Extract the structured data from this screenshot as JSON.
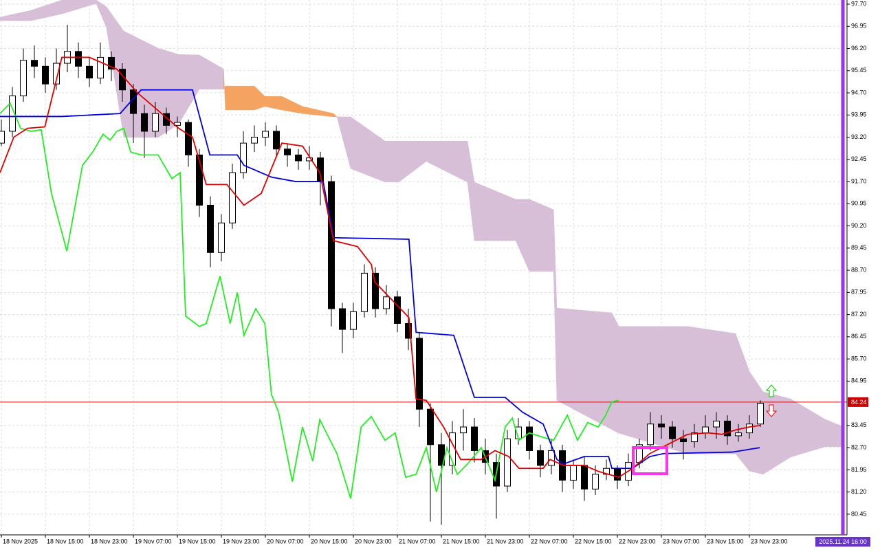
{
  "chart_data": {
    "type": "candlestick",
    "xlim": [
      -0.25,
      153.75
    ],
    "ylim": [
      79.75,
      97.84
    ],
    "grid": true,
    "yticks": [
      {
        "value": 97.7,
        "label": "97.70"
      },
      96.95,
      {
        "value": 96.2,
        "label": "96.20"
      },
      95.45,
      {
        "value": 94.7,
        "label": "94.70"
      },
      93.95,
      {
        "value": 93.2,
        "label": "93.20"
      },
      92.45,
      {
        "value": 91.7,
        "label": "91.70"
      },
      90.95,
      {
        "value": 90.2,
        "label": "90.20"
      },
      89.45,
      {
        "value": 88.7,
        "label": "88.70"
      },
      87.95,
      {
        "value": 87.2,
        "label": "87.20"
      },
      86.45,
      {
        "value": 85.7,
        "label": "85.70"
      },
      84.95,
      83.45,
      {
        "value": 82.7,
        "label": "82.70"
      },
      81.95,
      {
        "value": 81.2,
        "label": "81.20"
      },
      80.45
    ],
    "xticks": [
      {
        "value": 0,
        "label": "18 Nov 2025"
      },
      {
        "value": 8,
        "label": "18 Nov 15:00"
      },
      {
        "value": 16,
        "label": "18 Nov 23:00"
      },
      {
        "value": 24,
        "label": "19 Nov 07:00"
      },
      {
        "value": 32,
        "label": "19 Nov 15:00"
      },
      {
        "value": 40,
        "label": "19 Nov 23:00"
      },
      {
        "value": 48,
        "label": "20 Nov 07:00"
      },
      {
        "value": 56,
        "label": "20 Nov 15:00"
      },
      {
        "value": 64,
        "label": "20 Nov 23:00"
      },
      {
        "value": 72,
        "label": "21 Nov 07:00"
      },
      {
        "value": 80,
        "label": "21 Nov 15:00"
      },
      {
        "value": 88,
        "label": "21 Nov 23:00"
      },
      {
        "value": 96,
        "label": "22 Nov 07:00"
      },
      {
        "value": 104,
        "label": "22 Nov 15:00"
      },
      {
        "value": 112,
        "label": "22 Nov 23:00"
      },
      {
        "value": 120,
        "label": "23 Nov 07:00"
      },
      {
        "value": 128,
        "label": "23 Nov 15:00"
      },
      {
        "value": 136,
        "label": "23 Nov 23:00"
      }
    ],
    "candles": {
      "x": [
        0,
        2,
        4,
        6,
        8,
        10,
        12,
        14,
        16,
        18,
        20,
        22,
        24,
        26,
        28,
        30,
        32,
        34,
        36,
        38,
        40,
        42,
        44,
        46,
        48,
        50,
        52,
        54,
        56,
        58,
        60,
        62,
        64,
        66,
        68,
        70,
        72,
        74,
        76,
        78,
        80,
        82,
        84,
        86,
        88,
        90,
        92,
        94,
        96,
        98,
        100,
        102,
        104,
        106,
        108,
        110,
        112,
        114,
        116,
        118,
        120,
        122,
        124,
        126,
        128,
        130,
        132,
        134,
        136,
        138
      ],
      "open": [
        93.0,
        93.4,
        94.6,
        95.8,
        95.6,
        95.0,
        95.7,
        96.1,
        95.6,
        95.2,
        95.9,
        95.5,
        94.8,
        94.0,
        93.4,
        94.0,
        93.6,
        93.7,
        92.6,
        90.9,
        89.3,
        90.3,
        92.0,
        93.0,
        93.2,
        93.4,
        92.8,
        92.6,
        92.4,
        92.5,
        91.7,
        87.4,
        86.7,
        87.3,
        88.6,
        87.4,
        87.8,
        86.9,
        86.4,
        84.0,
        82.8,
        82.1,
        83.2,
        83.4,
        82.6,
        82.2,
        81.4,
        83.0,
        83.4,
        82.6,
        82.1,
        82.6,
        81.6,
        82.1,
        81.3,
        81.8,
        82.0,
        81.6,
        82.2,
        82.8,
        83.5,
        83.4,
        83.0,
        82.9,
        83.2,
        83.4,
        83.6,
        83.1,
        83.2,
        83.5
      ],
      "high": [
        93.8,
        94.9,
        96.2,
        96.3,
        95.9,
        96.2,
        97.0,
        96.4,
        95.9,
        96.4,
        96.1,
        95.7,
        95.0,
        94.3,
        94.4,
        94.2,
        93.9,
        93.8,
        92.8,
        91.2,
        90.6,
        92.3,
        93.4,
        93.6,
        93.7,
        93.6,
        93.0,
        92.8,
        92.9,
        92.7,
        91.9,
        87.6,
        87.6,
        88.9,
        88.8,
        88.2,
        88.0,
        87.4,
        86.6,
        84.2,
        83.2,
        83.6,
        84.0,
        83.7,
        83.0,
        82.5,
        83.3,
        83.7,
        83.6,
        82.8,
        83.0,
        82.8,
        82.3,
        82.4,
        82.1,
        82.3,
        82.1,
        82.5,
        83.0,
        83.9,
        83.8,
        83.6,
        83.3,
        83.5,
        83.8,
        83.9,
        83.8,
        83.5,
        83.8,
        84.3
      ],
      "low": [
        92.9,
        93.2,
        94.4,
        95.2,
        94.7,
        94.8,
        95.4,
        95.2,
        94.9,
        95.0,
        95.1,
        94.4,
        93.0,
        92.5,
        93.2,
        93.3,
        93.2,
        92.2,
        90.5,
        88.8,
        89.0,
        90.1,
        91.8,
        92.7,
        92.9,
        92.5,
        92.2,
        92.1,
        92.1,
        90.9,
        86.8,
        85.9,
        86.4,
        87.1,
        87.1,
        87.2,
        86.6,
        86.0,
        83.4,
        80.2,
        80.1,
        81.8,
        82.6,
        82.2,
        81.8,
        80.3,
        81.2,
        82.8,
        82.3,
        81.7,
        81.8,
        81.2,
        81.3,
        80.9,
        81.1,
        81.6,
        81.3,
        81.4,
        82.0,
        82.6,
        83.0,
        82.7,
        82.3,
        82.7,
        83.0,
        83.0,
        82.8,
        82.9,
        83.0,
        83.4
      ],
      "close": [
        93.4,
        94.6,
        95.8,
        95.6,
        95.0,
        95.7,
        96.1,
        95.6,
        95.2,
        95.9,
        95.5,
        94.8,
        94.0,
        93.4,
        94.0,
        93.6,
        93.7,
        92.6,
        90.9,
        89.3,
        90.3,
        92.0,
        93.0,
        93.2,
        93.4,
        92.8,
        92.6,
        92.4,
        92.5,
        91.7,
        87.4,
        86.7,
        87.3,
        88.6,
        87.4,
        87.8,
        86.9,
        86.4,
        84.0,
        82.8,
        82.1,
        83.2,
        83.4,
        82.6,
        82.2,
        81.4,
        83.0,
        83.4,
        82.6,
        82.1,
        82.6,
        81.6,
        82.1,
        81.3,
        81.8,
        82.0,
        81.6,
        82.2,
        82.8,
        83.5,
        83.4,
        83.0,
        82.9,
        83.2,
        83.4,
        83.6,
        83.1,
        83.2,
        83.5,
        84.2
      ]
    },
    "cloud": {
      "x": [
        -0.25,
        5.4,
        11,
        17.25,
        19.1,
        22.25,
        28.5,
        32.25,
        36,
        40.4,
        40.75,
        46,
        47.9,
        51,
        54.75,
        60.4,
        61,
        63.5,
        69.75,
        72.25,
        77.25,
        84.75,
        86,
        93.5,
        96,
        100.4,
        101,
        111,
        112.25,
        124.75,
        133.5,
        136,
        138.5,
        143.5,
        149.75,
        152.9
      ],
      "span_a": [
        97.14,
        97.14,
        97.37,
        97.72,
        96.91,
        93.19,
        93.19,
        93.65,
        94.82,
        94.82,
        94.93,
        94.93,
        94.58,
        94.58,
        94.24,
        94.0,
        93.89,
        92.14,
        91.68,
        91.68,
        92.38,
        91.68,
        89.7,
        89.7,
        88.66,
        88.66,
        84.3,
        83.31,
        83.19,
        82.49,
        82.49,
        81.91,
        81.8,
        82.38,
        82.73,
        82.73
      ],
      "span_b": [
        97.26,
        97.49,
        97.84,
        97.84,
        97.61,
        96.79,
        96.21,
        96.0,
        95.98,
        95.51,
        94.12,
        94.12,
        94.24,
        94.12,
        94.0,
        93.89,
        93.89,
        93.89,
        93.07,
        93.07,
        93.07,
        93.07,
        91.68,
        91.1,
        91.1,
        90.75,
        87.42,
        87.26,
        86.8,
        86.8,
        86.56,
        85.28,
        84.59,
        84.35,
        83.66,
        83.42
      ],
      "color_up": "#f4a460",
      "color_down": "#d8bfd8"
    },
    "lines": [
      {
        "color": "#22ee22",
        "x": [
          -0.25,
          1.6,
          3.5,
          5.4,
          7.25,
          9.1,
          11.9,
          14.75,
          16.6,
          18.5,
          19.75,
          21,
          22.25,
          23.5,
          25.4,
          28.5,
          31,
          32.5,
          33.5,
          36,
          37.25,
          39.75,
          41.6,
          42.9,
          44.1,
          46.25,
          47.9,
          49.1,
          50.4,
          52.9,
          54.75,
          56.6,
          57.9,
          59.1,
          61,
          63.5,
          65.4,
          67.25,
          69.75,
          71.6,
          73.5,
          75.4,
          77.25,
          79.1,
          81,
          82.9,
          84.75,
          87.25,
          89.75,
          91.6,
          92.9,
          94.1,
          96,
          98.5,
          100.4,
          102.9,
          104.75,
          106.6,
          108.5,
          109.75,
          111,
          112.25
        ],
        "values": [
          94.0,
          94.35,
          93.5,
          93.4,
          93.45,
          91.3,
          89.35,
          92.25,
          92.7,
          93.3,
          93.1,
          93.4,
          93.5,
          92.7,
          92.6,
          92.6,
          91.8,
          92.0,
          87.15,
          86.8,
          86.9,
          88.5,
          86.9,
          87.95,
          86.5,
          87.4,
          86.9,
          84.5,
          83.9,
          81.55,
          83.4,
          82.25,
          83.65,
          83.2,
          82.5,
          80.98,
          83.4,
          83.75,
          82.95,
          83.2,
          81.7,
          81.8,
          82.7,
          81.2,
          82.7,
          81.8,
          82.15,
          82.7,
          81.6,
          83.4,
          83.7,
          82.95,
          83.2,
          83.05,
          82.95,
          83.8,
          82.95,
          83.55,
          83.4,
          83.75,
          84.25,
          84.3
        ]
      },
      {
        "color": "#0000dd",
        "x": [
          -0.25,
          11,
          21.6,
          25.4,
          34.75,
          37.9,
          42.9,
          44.1,
          49.1,
          53.5,
          58.5,
          60.4,
          74.1,
          75.4,
          82.25,
          86,
          91.6,
          94.75,
          98.5,
          101,
          102.25,
          106,
          110.4,
          111,
          114.75,
          117.9,
          120.4,
          132.9,
          137.9
        ],
        "values": [
          93.9,
          93.9,
          94.0,
          94.8,
          94.8,
          92.6,
          92.6,
          92.25,
          91.85,
          91.7,
          91.7,
          89.8,
          89.75,
          86.6,
          86.5,
          84.4,
          84.4,
          83.9,
          83.5,
          82.3,
          82.15,
          82.4,
          82.4,
          82.0,
          82.0,
          82.4,
          82.5,
          82.55,
          82.7
        ]
      },
      {
        "color": "#e00000",
        "x": [
          -0.25,
          2.25,
          4.75,
          7.9,
          11,
          16,
          21,
          24.75,
          28.5,
          32.25,
          34.75,
          37.25,
          41,
          44.1,
          47.25,
          51,
          54.75,
          57.9,
          60.4,
          64.75,
          67.25,
          67.9,
          74.1,
          75.4,
          77.25,
          80.4,
          83.5,
          87.25,
          89.75,
          92.25,
          94.1,
          98.5,
          99.75,
          102.25,
          106,
          108.5,
          112.25,
          114.75,
          117.9,
          121.6,
          124.75,
          128.5,
          131,
          133.5,
          136,
          137.9
        ],
        "values": [
          92.0,
          93.2,
          93.5,
          93.55,
          95.9,
          95.9,
          95.5,
          94.7,
          94.1,
          93.5,
          93.2,
          91.6,
          91.6,
          90.9,
          91.3,
          93.0,
          92.9,
          92.0,
          89.7,
          89.5,
          88.9,
          88.3,
          87.1,
          84.35,
          84.3,
          83.4,
          82.3,
          82.3,
          82.6,
          82.4,
          82.0,
          82.0,
          82.3,
          82.1,
          82.1,
          81.9,
          81.7,
          82.0,
          82.5,
          82.85,
          83.15,
          83.2,
          83.15,
          83.3,
          83.4,
          83.45
        ]
      }
    ],
    "last_price": 84.24,
    "last_price_color": "#cc0000",
    "time_label": "2025.11.24 16:00"
  }
}
